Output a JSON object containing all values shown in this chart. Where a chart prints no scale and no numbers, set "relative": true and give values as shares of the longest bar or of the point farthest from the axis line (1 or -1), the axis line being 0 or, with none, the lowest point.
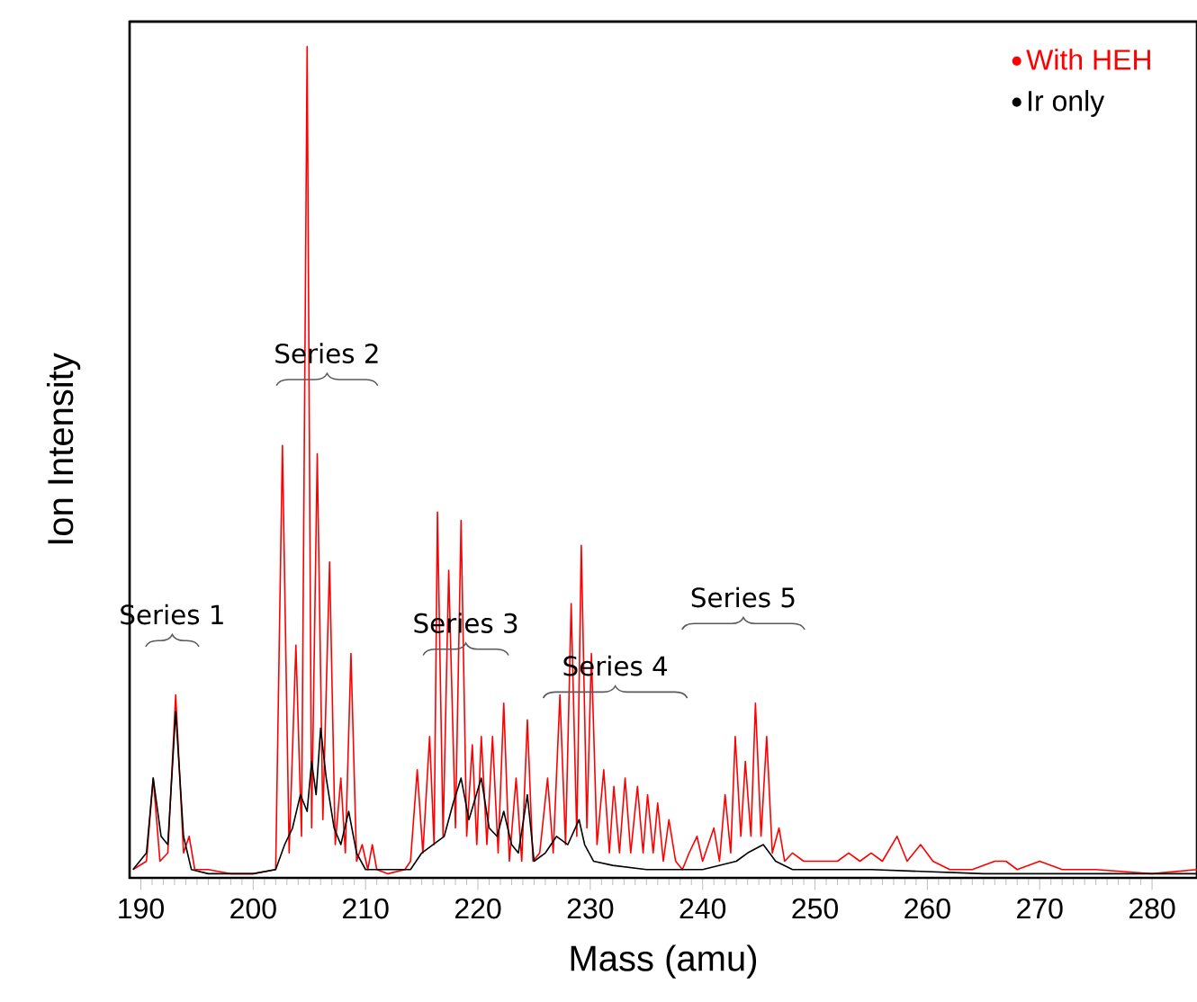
{
  "chart_data": {
    "type": "line",
    "xlabel": "Mass (amu)",
    "ylabel": "Ion Intensity",
    "relative": true,
    "xlim": [
      189,
      284
    ],
    "xticks": [
      190,
      200,
      210,
      220,
      230,
      240,
      250,
      260,
      270,
      280
    ],
    "legend": "top right",
    "annotations": [
      "Series 1",
      "Series 2",
      "Series 3",
      "Series 4",
      "Series 5"
    ],
    "series": [
      {
        "name": "With HEH",
        "color": "#ff0000",
        "x": [
          189.3,
          190.5,
          191.1,
          191.7,
          192.4,
          193.1,
          193.8,
          194.3,
          194.8,
          196,
          198,
          200,
          202,
          202.6,
          203.2,
          203.8,
          204.3,
          204.8,
          205.2,
          205.7,
          206.2,
          206.8,
          207.3,
          207.8,
          208.2,
          208.7,
          209.2,
          209.7,
          210.2,
          210.6,
          211,
          212,
          213.5,
          214,
          214.6,
          215.1,
          215.7,
          216.1,
          216.4,
          216.9,
          217.4,
          218,
          218.5,
          219,
          219.5,
          219.9,
          220.3,
          220.8,
          221.3,
          221.8,
          222.3,
          222.8,
          223.4,
          223.9,
          224.4,
          224.9,
          225.5,
          226.2,
          226.7,
          227.3,
          227.8,
          228.3,
          228.8,
          229.2,
          229.7,
          230.1,
          230.6,
          231.2,
          231.7,
          232.1,
          232.6,
          233.1,
          233.6,
          234.2,
          234.7,
          235.1,
          235.6,
          236,
          236.5,
          237,
          237.6,
          238.2,
          238.8,
          239.5,
          240,
          240.5,
          241,
          241.5,
          242,
          242.5,
          242.9,
          243.4,
          243.8,
          244.3,
          244.7,
          245.2,
          245.7,
          246.2,
          246.8,
          247.3,
          248,
          249,
          250,
          252,
          253,
          254,
          255,
          256,
          257.3,
          258.2,
          259.4,
          260.5,
          262,
          264,
          266,
          267,
          268,
          270,
          272,
          275,
          280,
          284
        ],
        "values": [
          0.01,
          0.02,
          0.12,
          0.02,
          0.03,
          0.22,
          0.03,
          0.05,
          0.01,
          0.01,
          0.005,
          0.005,
          0.01,
          0.52,
          0.03,
          0.28,
          0.05,
          1.0,
          0.06,
          0.51,
          0.07,
          0.38,
          0.04,
          0.12,
          0.03,
          0.27,
          0.02,
          0.04,
          0.01,
          0.04,
          0.01,
          0.005,
          0.01,
          0.02,
          0.13,
          0.03,
          0.17,
          0.04,
          0.44,
          0.05,
          0.37,
          0.06,
          0.43,
          0.05,
          0.16,
          0.04,
          0.17,
          0.04,
          0.17,
          0.03,
          0.21,
          0.02,
          0.12,
          0.02,
          0.19,
          0.02,
          0.03,
          0.12,
          0.03,
          0.22,
          0.04,
          0.33,
          0.05,
          0.4,
          0.06,
          0.27,
          0.04,
          0.13,
          0.03,
          0.11,
          0.03,
          0.12,
          0.03,
          0.11,
          0.03,
          0.1,
          0.03,
          0.09,
          0.02,
          0.07,
          0.02,
          0.01,
          0.03,
          0.05,
          0.02,
          0.04,
          0.06,
          0.02,
          0.1,
          0.03,
          0.17,
          0.05,
          0.14,
          0.05,
          0.21,
          0.05,
          0.17,
          0.03,
          0.06,
          0.02,
          0.03,
          0.02,
          0.02,
          0.02,
          0.03,
          0.02,
          0.03,
          0.02,
          0.05,
          0.02,
          0.04,
          0.02,
          0.01,
          0.01,
          0.02,
          0.02,
          0.01,
          0.02,
          0.01,
          0.01,
          0.005,
          0.01
        ]
      },
      {
        "name": "Ir only",
        "color": "#000000",
        "x": [
          189.3,
          190.5,
          191.1,
          191.8,
          192.4,
          193.1,
          193.8,
          194.5,
          196,
          200,
          202,
          202.8,
          203.5,
          204.2,
          204.8,
          205.2,
          205.6,
          206,
          206.5,
          207.2,
          207.8,
          208.5,
          209.2,
          210,
          212,
          214,
          215,
          216,
          217,
          217.8,
          218.5,
          219.2,
          220.3,
          221,
          221.7,
          222.3,
          223,
          223.6,
          224.4,
          225,
          226,
          227,
          228,
          229,
          229.5,
          230.3,
          232,
          235,
          240,
          243,
          244,
          245.4,
          246.5,
          248,
          255,
          265,
          284
        ],
        "values": [
          0.01,
          0.03,
          0.12,
          0.05,
          0.04,
          0.2,
          0.05,
          0.01,
          0.005,
          0.005,
          0.01,
          0.04,
          0.06,
          0.1,
          0.08,
          0.14,
          0.1,
          0.18,
          0.12,
          0.06,
          0.04,
          0.08,
          0.03,
          0.01,
          0.01,
          0.01,
          0.03,
          0.04,
          0.05,
          0.09,
          0.12,
          0.07,
          0.12,
          0.06,
          0.05,
          0.08,
          0.04,
          0.03,
          0.1,
          0.02,
          0.03,
          0.05,
          0.04,
          0.07,
          0.04,
          0.02,
          0.015,
          0.01,
          0.01,
          0.02,
          0.03,
          0.04,
          0.02,
          0.01,
          0.01,
          0.005,
          0.005
        ]
      }
    ]
  }
}
